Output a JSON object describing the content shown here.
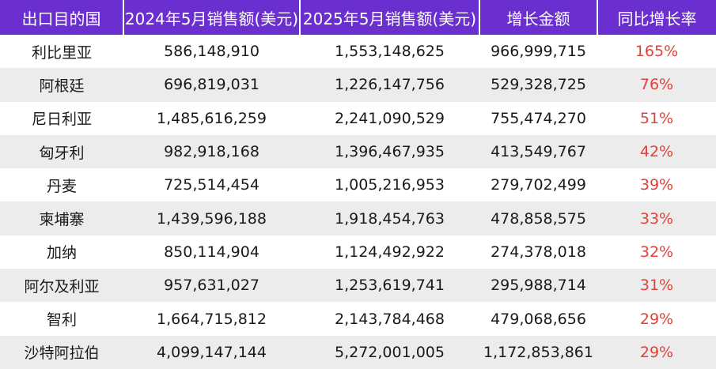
{
  "table": {
    "headers": [
      "出口目的国",
      "2024年5月销售额(美元)",
      "2025年5月销售额(美元)",
      "增长金额",
      "同比增长率"
    ],
    "rows": [
      [
        "利比里亚",
        "586,148,910",
        "1,553,148,625",
        "966,999,715",
        "165%"
      ],
      [
        "阿根廷",
        "696,819,031",
        "1,226,147,756",
        "529,328,725",
        "76%"
      ],
      [
        "尼日利亚",
        "1,485,616,259",
        "2,241,090,529",
        "755,474,270",
        "51%"
      ],
      [
        "匈牙利",
        "982,918,168",
        "1,396,467,935",
        "413,549,767",
        "42%"
      ],
      [
        "丹麦",
        "725,514,454",
        "1,005,216,953",
        "279,702,499",
        "39%"
      ],
      [
        "柬埔寨",
        "1,439,596,188",
        "1,918,454,763",
        "478,858,575",
        "33%"
      ],
      [
        "加纳",
        "850,114,904",
        "1,124,492,922",
        "274,378,018",
        "32%"
      ],
      [
        "阿尔及利亚",
        "957,631,027",
        "1,253,619,741",
        "295,988,714",
        "31%"
      ],
      [
        "智利",
        "1,664,715,812",
        "2,143,784,468",
        "479,068,656",
        "29%"
      ],
      [
        "沙特阿拉伯",
        "4,099,147,144",
        "5,272,001,005",
        "1,172,853,861",
        "29%"
      ]
    ]
  },
  "colors": {
    "header_bg": "#6b2fd0",
    "header_text": "#ffffff",
    "alt_row_bg": "#ececec",
    "rate_text": "#e0423a"
  }
}
